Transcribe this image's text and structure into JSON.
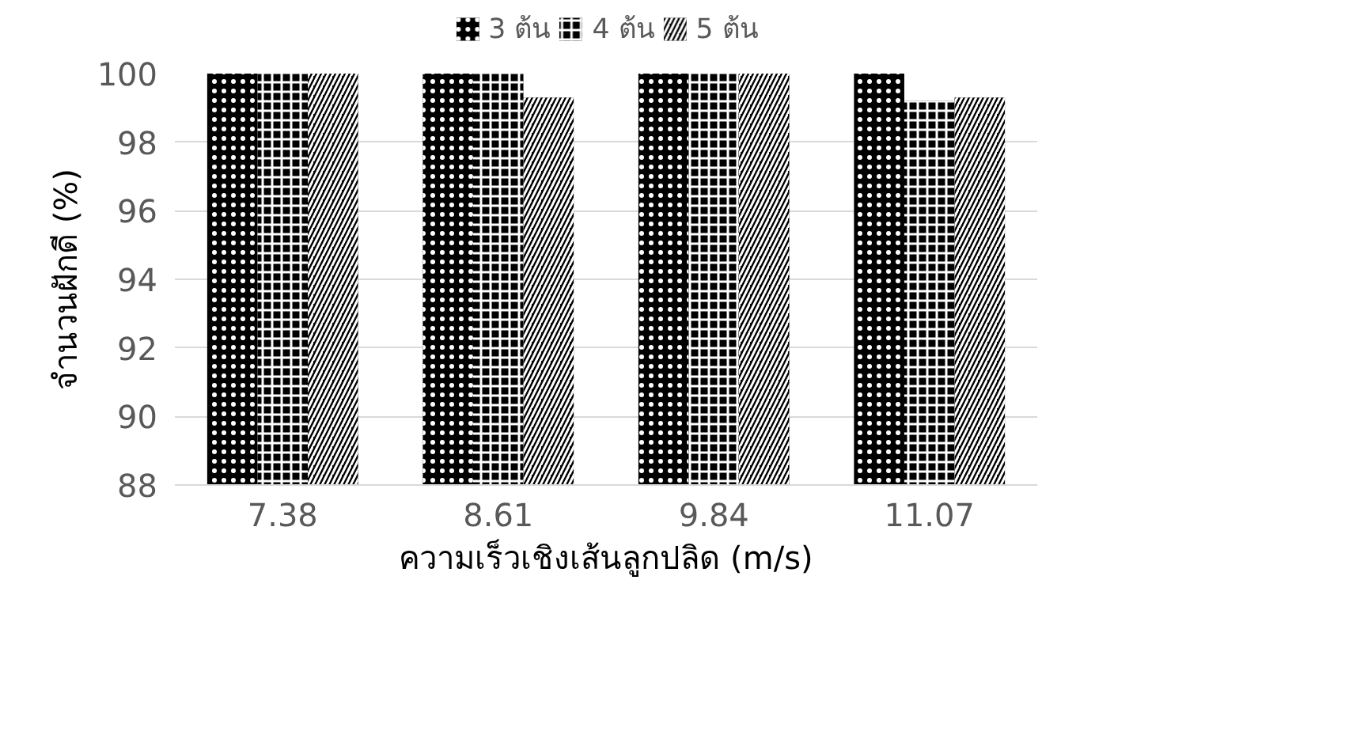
{
  "chart_data": {
    "type": "bar",
    "xlabel": "ความเร็วเชิงเส้นลูกปลิด (m/s)",
    "ylabel": "จำนวนฝักดี (%)",
    "categories": [
      "7.38",
      "8.61",
      "9.84",
      "11.07"
    ],
    "series": [
      {
        "name": "3 ต้น",
        "color": "#000000",
        "values": [
          100,
          100,
          100,
          100
        ]
      },
      {
        "name": "4 ต้น",
        "color": "#000000",
        "values": [
          100,
          100,
          100,
          99.2
        ]
      },
      {
        "name": "5 ต้น",
        "color": "#000000",
        "values": [
          100,
          99.3,
          100,
          99.3
        ]
      }
    ],
    "ylim": [
      88,
      100
    ],
    "yticks": [
      88,
      90,
      92,
      94,
      96,
      98,
      100
    ],
    "grid": "y",
    "legend": "top"
  }
}
